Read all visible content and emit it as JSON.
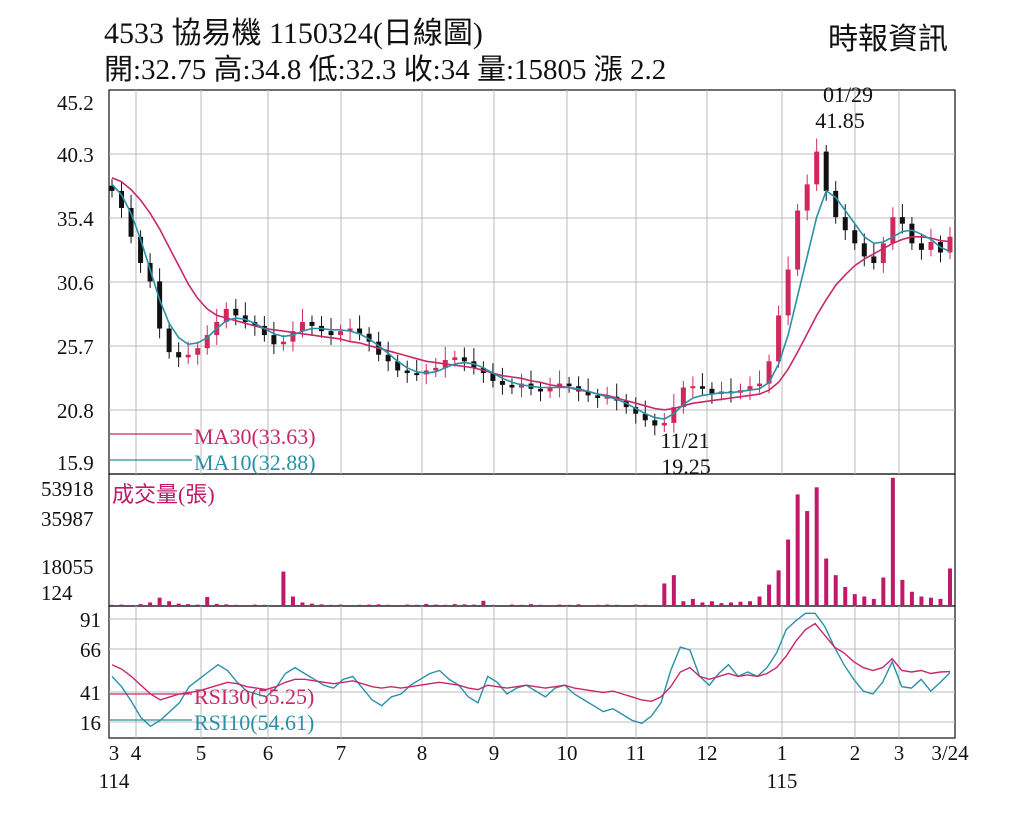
{
  "header": {
    "title": "4533  協易機 1150324(日線圖)",
    "source": "時報資訊",
    "ohlc": "開:32.75 高:34.8 低:32.3 收:34 量:15805 漲 2.2"
  },
  "colors": {
    "up": "#d0285a",
    "down": "#111111",
    "ma30": "#c8286a",
    "ma10": "#2a90a8",
    "volume": "#c0186a",
    "grid": "#bbbbbb"
  },
  "chart_data": [
    {
      "type": "candlestick",
      "panel": "price",
      "y_ticks": [
        "45.2",
        "40.3",
        "35.4",
        "30.6",
        "25.7",
        "20.8",
        "15.9"
      ],
      "ylim": [
        15.9,
        45.2
      ],
      "x_ticks": [
        {
          "label": "3",
          "sub": "114"
        },
        {
          "label": "4"
        },
        {
          "label": "5"
        },
        {
          "label": "6"
        },
        {
          "label": "7"
        },
        {
          "label": "8"
        },
        {
          "label": "9"
        },
        {
          "label": "10"
        },
        {
          "label": "11"
        },
        {
          "label": "12"
        },
        {
          "label": "1",
          "sub": "115"
        },
        {
          "label": "2"
        },
        {
          "label": "3"
        },
        {
          "label": "3/24"
        }
      ],
      "annotations": [
        {
          "date": "01/29",
          "value": "41.85"
        },
        {
          "date": "11/21",
          "value": "19.25"
        }
      ],
      "legend": [
        {
          "label": "MA30(33.63)",
          "color": "#c8286a"
        },
        {
          "label": "MA10(32.88)",
          "color": "#2a90a8"
        }
      ],
      "series": [
        {
          "name": "close",
          "values": [
            37.5,
            36.2,
            34.0,
            32.0,
            30.6,
            27.0,
            25.2,
            24.8,
            25.0,
            25.5,
            26.5,
            27.5,
            28.5,
            28.0,
            27.5,
            27.2,
            26.5,
            25.8,
            26.0,
            26.8,
            27.5,
            27.2,
            26.8,
            26.5,
            26.8,
            27.0,
            26.6,
            26.0,
            25.0,
            24.5,
            23.8,
            23.6,
            23.5,
            23.8,
            24.0,
            24.6,
            24.8,
            24.5,
            24.0,
            23.6,
            23.0,
            22.7,
            22.5,
            22.8,
            22.4,
            22.2,
            22.5,
            22.8,
            22.6,
            22.2,
            21.9,
            21.7,
            21.8,
            21.5,
            21.0,
            20.5,
            20.0,
            19.6,
            19.8,
            21.0,
            22.5,
            22.6,
            22.4,
            22.0,
            22.2,
            22.1,
            22.3,
            22.6,
            22.8,
            24.5,
            28.0,
            31.5,
            36.0,
            38.0,
            40.5,
            37.5,
            35.5,
            34.5,
            33.5,
            32.5,
            32.0,
            33.5,
            35.5,
            35.0,
            33.5,
            33.0,
            33.6,
            32.8,
            34.0
          ]
        },
        {
          "name": "MA30",
          "values": [
            38.5,
            38.2,
            37.6,
            36.8,
            35.8,
            34.6,
            33.2,
            31.8,
            30.4,
            29.3,
            28.5,
            28.0,
            27.8,
            27.6,
            27.4,
            27.2,
            27.0,
            26.9,
            26.8,
            26.7,
            26.6,
            26.5,
            26.4,
            26.3,
            26.2,
            26.0,
            25.9,
            25.7,
            25.5,
            25.3,
            25.1,
            24.9,
            24.7,
            24.5,
            24.4,
            24.3,
            24.2,
            24.1,
            24.0,
            23.8,
            23.6,
            23.4,
            23.3,
            23.2,
            23.0,
            22.9,
            22.7,
            22.6,
            22.5,
            22.3,
            22.2,
            22.0,
            21.9,
            21.7,
            21.5,
            21.3,
            21.1,
            20.9,
            20.8,
            20.9,
            21.1,
            21.3,
            21.4,
            21.5,
            21.6,
            21.7,
            21.8,
            21.9,
            22.0,
            22.3,
            22.9,
            23.9,
            25.2,
            26.6,
            28.0,
            29.2,
            30.3,
            31.1,
            31.8,
            32.3,
            32.7,
            33.1,
            33.5,
            33.8,
            34.0,
            34.0,
            33.9,
            33.7,
            33.63
          ]
        },
        {
          "name": "MA10",
          "values": [
            38.0,
            37.2,
            35.8,
            33.8,
            31.5,
            29.2,
            27.4,
            26.3,
            25.8,
            25.9,
            26.3,
            27.0,
            27.6,
            27.8,
            27.7,
            27.4,
            27.0,
            26.6,
            26.4,
            26.5,
            26.8,
            27.0,
            27.0,
            26.9,
            26.9,
            26.8,
            26.6,
            26.2,
            25.7,
            25.1,
            24.5,
            24.0,
            23.7,
            23.6,
            23.7,
            24.0,
            24.3,
            24.4,
            24.3,
            24.0,
            23.6,
            23.2,
            22.9,
            22.7,
            22.6,
            22.5,
            22.5,
            22.5,
            22.5,
            22.4,
            22.2,
            22.0,
            21.8,
            21.6,
            21.3,
            20.9,
            20.5,
            20.2,
            20.1,
            20.5,
            21.2,
            21.7,
            21.9,
            22.0,
            22.1,
            22.1,
            22.2,
            22.3,
            22.4,
            22.9,
            24.3,
            26.5,
            29.5,
            32.5,
            35.5,
            37.5,
            37.0,
            36.0,
            35.0,
            34.0,
            33.5,
            33.6,
            34.0,
            34.4,
            34.5,
            34.2,
            33.8,
            33.2,
            32.88
          ]
        }
      ]
    },
    {
      "type": "bar",
      "panel": "volume",
      "title": "成交量(張)",
      "y_ticks": [
        "53918",
        "35987",
        "18055",
        "124"
      ],
      "ylim": [
        0,
        53918
      ],
      "series": [
        {
          "name": "volume",
          "values": [
            500,
            600,
            400,
            800,
            1500,
            3500,
            2000,
            1000,
            800,
            600,
            3800,
            900,
            700,
            500,
            400,
            600,
            500,
            400,
            14500,
            4000,
            1500,
            1000,
            700,
            500,
            600,
            400,
            500,
            600,
            700,
            500,
            400,
            600,
            500,
            900,
            600,
            500,
            800,
            700,
            600,
            2200,
            500,
            400,
            600,
            500,
            800,
            500,
            400,
            600,
            500,
            700,
            400,
            500,
            600,
            500,
            400,
            600,
            500,
            400,
            9500,
            13000,
            2000,
            3000,
            1500,
            2000,
            1200,
            1500,
            1800,
            2000,
            4000,
            9000,
            15000,
            28000,
            47000,
            40000,
            50000,
            20000,
            13000,
            8000,
            5000,
            4000,
            3000,
            12000,
            54000,
            11000,
            6000,
            4000,
            3500,
            3000,
            15805
          ]
        }
      ]
    },
    {
      "type": "line",
      "panel": "rsi",
      "y_ticks": [
        "91",
        "66",
        "41",
        "16"
      ],
      "ylim": [
        16,
        91
      ],
      "legend": [
        {
          "label": "RSI30(55.25)",
          "color": "#c8286a"
        },
        {
          "label": "RSI10(54.61)",
          "color": "#2a90a8"
        }
      ],
      "series": [
        {
          "name": "RSI30",
          "values": [
            60,
            57,
            52,
            46,
            40,
            36,
            38,
            40,
            41,
            42,
            44,
            46,
            48,
            47,
            45,
            44,
            43,
            45,
            48,
            50,
            50,
            49,
            48,
            47,
            48,
            49,
            47,
            45,
            44,
            45,
            44,
            45,
            46,
            47,
            48,
            47,
            46,
            44,
            43,
            46,
            45,
            44,
            45,
            46,
            45,
            44,
            45,
            46,
            44,
            43,
            42,
            41,
            42,
            40,
            38,
            36,
            35,
            38,
            45,
            55,
            58,
            52,
            50,
            52,
            54,
            52,
            53,
            52,
            54,
            58,
            66,
            76,
            84,
            88,
            80,
            72,
            68,
            62,
            58,
            56,
            58,
            64,
            56,
            55,
            56,
            54,
            55,
            55.25
          ]
        },
        {
          "name": "RSI10",
          "values": [
            52,
            45,
            35,
            24,
            18,
            22,
            28,
            34,
            45,
            50,
            55,
            60,
            56,
            48,
            42,
            40,
            38,
            44,
            54,
            58,
            54,
            50,
            46,
            44,
            50,
            52,
            44,
            36,
            32,
            38,
            40,
            46,
            50,
            54,
            56,
            50,
            46,
            38,
            34,
            52,
            48,
            40,
            44,
            46,
            42,
            38,
            44,
            46,
            40,
            36,
            32,
            28,
            30,
            26,
            22,
            20,
            25,
            34,
            56,
            72,
            70,
            52,
            46,
            54,
            60,
            52,
            55,
            52,
            58,
            68,
            84,
            90,
            95,
            95,
            86,
            72,
            60,
            50,
            42,
            40,
            48,
            62,
            45,
            44,
            50,
            42,
            48,
            54.61
          ]
        }
      ]
    }
  ]
}
